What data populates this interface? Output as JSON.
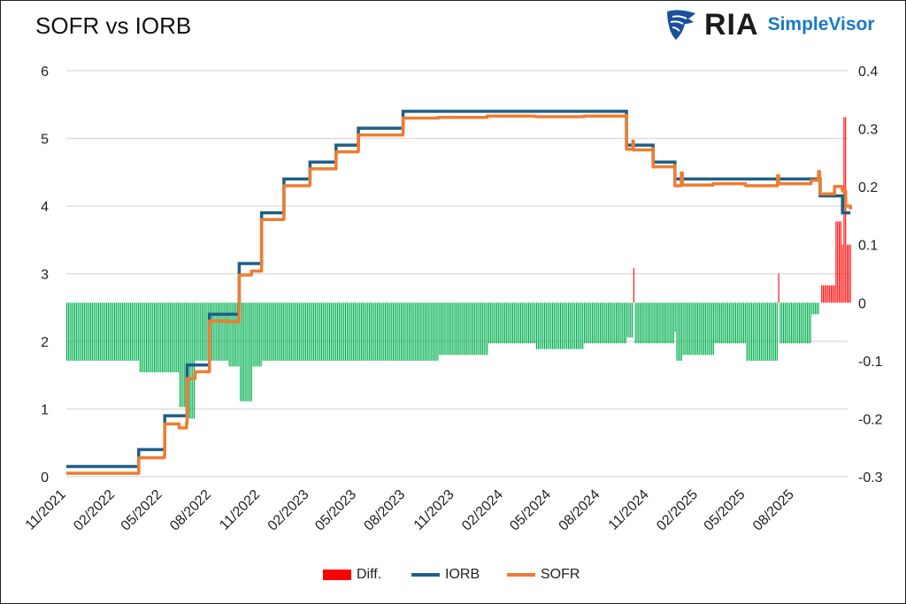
{
  "title": "SOFR vs IORB",
  "logo": {
    "brand": "RIA",
    "product": "SimpleVisor"
  },
  "colors": {
    "iorb": "#1f5f86",
    "sofr": "#ed7d31",
    "diff_pos": "#ff0000",
    "diff_neg": "#00b050",
    "grid": "#d9d9d9",
    "logo_blue": "#1c78c8"
  },
  "chart_data": {
    "type": "line",
    "title": "SOFR vs IORB",
    "x_tick_labels": [
      "11/2021",
      "02/2022",
      "05/2022",
      "08/2022",
      "11/2022",
      "02/2023",
      "05/2023",
      "08/2023",
      "11/2023",
      "02/2024",
      "05/2024",
      "08/2024",
      "11/2024",
      "02/2025",
      "05/2025",
      "08/2025"
    ],
    "y_left": {
      "ylim": [
        0,
        6
      ],
      "ticks": [
        "0",
        "1",
        "2",
        "3",
        "4",
        "5",
        "6"
      ]
    },
    "y_right": {
      "ylim": [
        -0.3,
        0.4
      ],
      "ticks": [
        "-0.3",
        "-0.2",
        "-0.1",
        "0",
        "0.1",
        "0.2",
        "0.3",
        "0.4"
      ]
    },
    "grid": true,
    "legend_position": "bottom",
    "series": [
      {
        "name": "Diff.",
        "type": "bar",
        "axis": "right"
      },
      {
        "name": "IORB",
        "type": "line",
        "axis": "left"
      },
      {
        "name": "SOFR",
        "type": "line",
        "axis": "left"
      }
    ],
    "columns": [
      "date",
      "IORB",
      "SOFR",
      "Diff."
    ],
    "points": [
      [
        "2021-11-01",
        0.15,
        0.05,
        -0.1
      ],
      [
        "2022-03-16",
        0.15,
        0.05,
        -0.1
      ],
      [
        "2022-03-17",
        0.4,
        0.28,
        -0.12
      ],
      [
        "2022-05-04",
        0.4,
        0.3,
        -0.1
      ],
      [
        "2022-05-05",
        0.9,
        0.78,
        -0.12
      ],
      [
        "2022-06-01",
        0.9,
        0.72,
        -0.18
      ],
      [
        "2022-06-15",
        0.9,
        0.8,
        -0.1
      ],
      [
        "2022-06-16",
        1.65,
        1.45,
        -0.2
      ],
      [
        "2022-07-01",
        1.65,
        1.55,
        -0.1
      ],
      [
        "2022-07-27",
        1.65,
        1.55,
        -0.1
      ],
      [
        "2022-07-28",
        2.4,
        2.3,
        -0.1
      ],
      [
        "2022-09-01",
        2.4,
        2.29,
        -0.11
      ],
      [
        "2022-09-21",
        2.4,
        2.3,
        -0.1
      ],
      [
        "2022-09-22",
        3.15,
        2.98,
        -0.17
      ],
      [
        "2022-10-15",
        3.15,
        3.04,
        -0.11
      ],
      [
        "2022-11-02",
        3.15,
        3.04,
        -0.11
      ],
      [
        "2022-11-03",
        3.9,
        3.8,
        -0.1
      ],
      [
        "2022-12-14",
        3.9,
        3.81,
        -0.09
      ],
      [
        "2022-12-15",
        4.4,
        4.3,
        -0.1
      ],
      [
        "2023-02-01",
        4.4,
        4.31,
        -0.09
      ],
      [
        "2023-02-02",
        4.65,
        4.55,
        -0.1
      ],
      [
        "2023-03-22",
        4.65,
        4.55,
        -0.1
      ],
      [
        "2023-03-23",
        4.9,
        4.8,
        -0.1
      ],
      [
        "2023-05-03",
        4.9,
        4.81,
        -0.09
      ],
      [
        "2023-05-04",
        5.15,
        5.05,
        -0.1
      ],
      [
        "2023-07-26",
        5.15,
        5.06,
        -0.09
      ],
      [
        "2023-07-27",
        5.4,
        5.3,
        -0.1
      ],
      [
        "2023-10-01",
        5.4,
        5.31,
        -0.09
      ],
      [
        "2024-01-01",
        5.4,
        5.33,
        -0.07
      ],
      [
        "2024-04-01",
        5.4,
        5.32,
        -0.08
      ],
      [
        "2024-07-01",
        5.4,
        5.33,
        -0.07
      ],
      [
        "2024-09-18",
        5.4,
        5.34,
        -0.06
      ],
      [
        "2024-09-19",
        4.9,
        4.84,
        -0.06
      ],
      [
        "2024-10-01",
        4.9,
        4.96,
        0.06
      ],
      [
        "2024-10-02",
        4.9,
        4.83,
        -0.07
      ],
      [
        "2024-11-07",
        4.9,
        4.85,
        -0.05
      ],
      [
        "2024-11-08",
        4.65,
        4.58,
        -0.07
      ],
      [
        "2024-12-18",
        4.65,
        4.6,
        -0.05
      ],
      [
        "2024-12-19",
        4.4,
        4.3,
        -0.1
      ],
      [
        "2024-12-31",
        4.4,
        4.49,
        0.09
      ],
      [
        "2025-01-02",
        4.4,
        4.31,
        -0.09
      ],
      [
        "2025-03-01",
        4.4,
        4.33,
        -0.07
      ],
      [
        "2025-05-01",
        4.4,
        4.3,
        -0.1
      ],
      [
        "2025-06-30",
        4.4,
        4.45,
        0.05
      ],
      [
        "2025-07-02",
        4.4,
        4.33,
        -0.07
      ],
      [
        "2025-09-01",
        4.4,
        4.38,
        -0.02
      ],
      [
        "2025-09-15",
        4.4,
        4.51,
        0.11
      ],
      [
        "2025-09-17",
        4.4,
        4.4,
        0.0
      ],
      [
        "2025-09-18",
        4.15,
        4.18,
        0.03
      ],
      [
        "2025-10-15",
        4.15,
        4.29,
        0.14
      ],
      [
        "2025-10-29",
        4.15,
        4.25,
        0.1
      ],
      [
        "2025-10-30",
        3.9,
        4.22,
        0.32
      ],
      [
        "2025-11-05",
        3.9,
        4.0,
        0.1
      ],
      [
        "2025-11-14",
        3.9,
        3.95,
        0.05
      ]
    ]
  }
}
